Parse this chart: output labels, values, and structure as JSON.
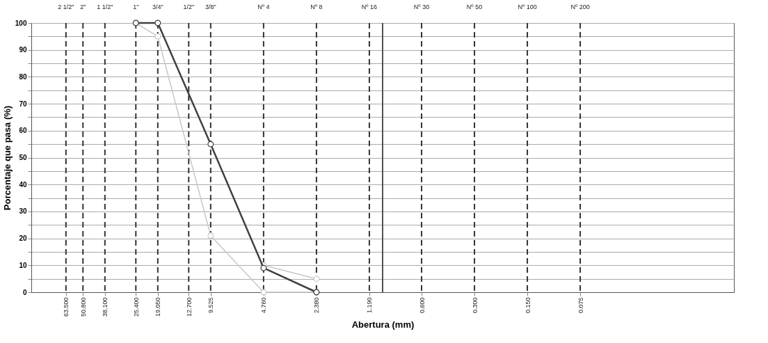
{
  "chart_data": {
    "type": "line",
    "xlabel": "Abertura (mm)",
    "ylabel": "Porcentaje que pasa (%)",
    "log": "x",
    "xlim": [
      100,
      0.01
    ],
    "ylim": [
      0,
      100
    ],
    "xticks": [
      {
        "value": 63.5,
        "label": "63.500"
      },
      {
        "value": 50.8,
        "label": "50.800"
      },
      {
        "value": 38.1,
        "label": "38.100"
      },
      {
        "value": 25.4,
        "label": "25.400"
      },
      {
        "value": 19.05,
        "label": "19.050"
      },
      {
        "value": 12.7,
        "label": "12.700"
      },
      {
        "value": 9.525,
        "label": "9.525"
      },
      {
        "value": 4.76,
        "label": "4.760"
      },
      {
        "value": 2.38,
        "label": "2.380"
      },
      {
        "value": 1.19,
        "label": "1.190"
      },
      {
        "value": 0.6,
        "label": "0.600"
      },
      {
        "value": 0.3,
        "label": "0.300"
      },
      {
        "value": 0.15,
        "label": "0.150"
      },
      {
        "value": 0.075,
        "label": "0.075"
      }
    ],
    "yticks": [
      0,
      {
        "value": 5,
        "label": null
      },
      10,
      {
        "value": 15,
        "label": null
      },
      20,
      {
        "value": 25,
        "label": null
      },
      30,
      {
        "value": 35,
        "label": null
      },
      40,
      {
        "value": 45,
        "label": null
      },
      50,
      {
        "value": 55,
        "label": null
      },
      60,
      {
        "value": 65,
        "label": null
      },
      70,
      {
        "value": 75,
        "label": null
      },
      80,
      {
        "value": 85,
        "label": null
      },
      90,
      {
        "value": 95,
        "label": null
      },
      100
    ],
    "grid": "y",
    "marker": "circle",
    "line_style": "solid",
    "ref_lines": [
      {
        "axis": "x",
        "value": 63.5,
        "line_style": "dashed",
        "color": "#333333"
      },
      {
        "axis": "x",
        "value": 50.8,
        "line_style": "dashed",
        "color": "#333333"
      },
      {
        "axis": "x",
        "value": 38.1,
        "line_style": "dashed",
        "color": "#333333"
      },
      {
        "axis": "x",
        "value": 25.4,
        "line_style": "dashed",
        "color": "#333333"
      },
      {
        "axis": "x",
        "value": 19.05,
        "line_style": "dashed",
        "color": "#333333"
      },
      {
        "axis": "x",
        "value": 12.7,
        "line_style": "dashed",
        "color": "#333333"
      },
      {
        "axis": "x",
        "value": 9.525,
        "line_style": "dashed",
        "color": "#333333"
      },
      {
        "axis": "x",
        "value": 4.76,
        "line_style": "dashed",
        "color": "#333333"
      },
      {
        "axis": "x",
        "value": 2.38,
        "line_style": "dashed",
        "color": "#333333"
      },
      {
        "axis": "x",
        "value": 1.19,
        "line_style": "dashed",
        "color": "#333333"
      },
      {
        "axis": "x",
        "value": 0.6,
        "line_style": "dashed",
        "color": "#333333"
      },
      {
        "axis": "x",
        "value": 0.3,
        "line_style": "dashed",
        "color": "#333333"
      },
      {
        "axis": "x",
        "value": 0.15,
        "line_style": "dashed",
        "color": "#333333"
      },
      {
        "axis": "x",
        "value": 0.075,
        "line_style": "dashed",
        "color": "#333333"
      },
      {
        "axis": "x",
        "value": 1,
        "line_style": "solid",
        "color": "#505050"
      }
    ],
    "annotations": [
      {
        "text": "2 1/2\"",
        "x": 63.5,
        "y": 100
      },
      {
        "text": "2\"",
        "x": 50.8,
        "y": 100
      },
      {
        "text": "1 1/2\"",
        "x": 38.1,
        "y": 100
      },
      {
        "text": "1\"",
        "x": 25.4,
        "y": 100
      },
      {
        "text": "3/4\"",
        "x": 19.05,
        "y": 100
      },
      {
        "text": "1/2\"",
        "x": 12.7,
        "y": 100
      },
      {
        "text": "3/8\"",
        "x": 9.525,
        "y": 100
      },
      {
        "text": "Nº 4",
        "x": 4.76,
        "y": 100
      },
      {
        "text": "Nº 8",
        "x": 2.38,
        "y": 100
      },
      {
        "text": "Nº 16",
        "x": 1.19,
        "y": 100
      },
      {
        "text": "Nº 30",
        "x": 0.6,
        "y": 100
      },
      {
        "text": "Nº 50",
        "x": 0.3,
        "y": 100
      },
      {
        "text": "Nº 100",
        "x": 0.15,
        "y": 100
      },
      {
        "text": "Nº 200",
        "x": 0.075,
        "y": 100
      }
    ],
    "series": [
      {
        "color": "#c8c8c8",
        "x": [
          25.4,
          19.05,
          9.525,
          4.76,
          2.38
        ],
        "values": [
          100,
          95,
          21,
          0,
          0
        ]
      },
      {
        "color": "#c8c8c8",
        "x": [
          4.76,
          2.38
        ],
        "values": [
          10,
          5
        ]
      },
      {
        "color": "#404040",
        "x": [
          25.4,
          19.05,
          9.525,
          4.76,
          2.38
        ],
        "values": [
          100,
          100,
          55,
          9,
          0
        ]
      }
    ]
  }
}
